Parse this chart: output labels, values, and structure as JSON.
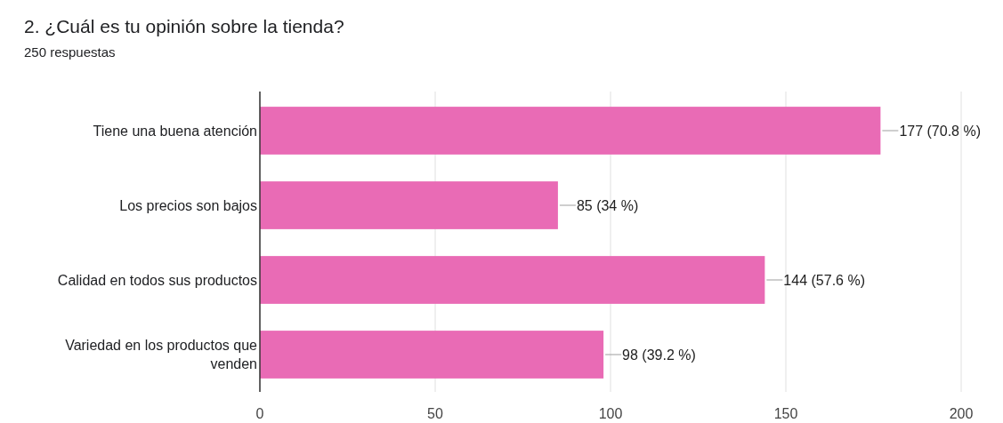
{
  "chart_data": {
    "type": "bar",
    "orientation": "horizontal",
    "title": "2. ¿Cuál es tu opinión sobre la tienda?",
    "subtitle": "250 respuestas",
    "categories": [
      "Tiene una buena atención",
      "Los precios son bajos",
      "Calidad en todos sus productos",
      "Variedad en los productos que venden"
    ],
    "values": [
      177,
      85,
      144,
      98
    ],
    "color": "#e96bb5",
    "value_labels": [
      "177 (70.8 %)",
      "85 (34 %)",
      "144 (57.6 %)",
      "98 (39.2 %)"
    ],
    "xlim": [
      0,
      200
    ],
    "xticks": [
      0,
      50,
      100,
      150,
      200
    ],
    "grid": "x"
  }
}
